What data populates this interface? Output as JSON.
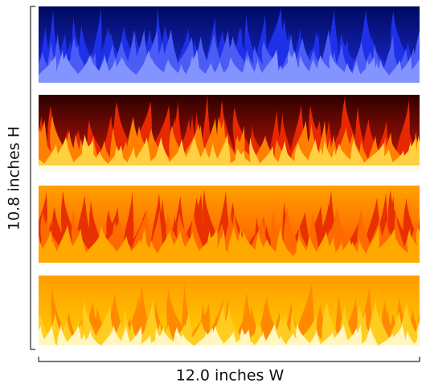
{
  "dimensions": {
    "height_label": "10.8 inches H",
    "width_label": "12.0 inches W"
  }
}
